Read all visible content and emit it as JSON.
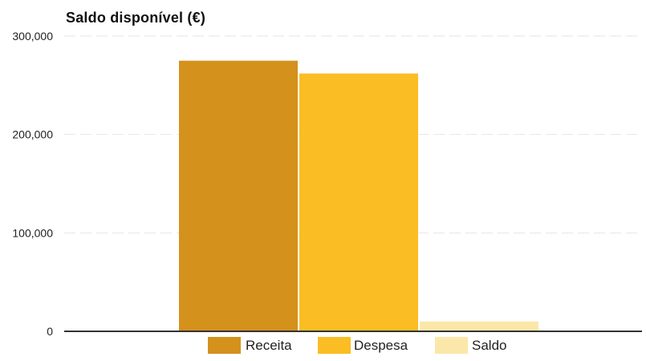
{
  "chart_data": {
    "type": "bar",
    "title": "Saldo disponível (€)",
    "xlabel": "",
    "ylabel": "",
    "categories": [
      ""
    ],
    "series": [
      {
        "name": "Receita",
        "values": [
          275000
        ],
        "color": "#d4911c"
      },
      {
        "name": "Despesa",
        "values": [
          262000
        ],
        "color": "#fbbd24"
      },
      {
        "name": "Saldo",
        "values": [
          10000
        ],
        "color": "#fbe7a9"
      }
    ],
    "ylim": [
      0,
      300000
    ],
    "yticks": [
      0,
      100000,
      200000,
      300000
    ],
    "ytick_labels": [
      "0",
      "100,000",
      "200,000",
      "300,000"
    ],
    "grid": true,
    "legend_position": "bottom"
  }
}
